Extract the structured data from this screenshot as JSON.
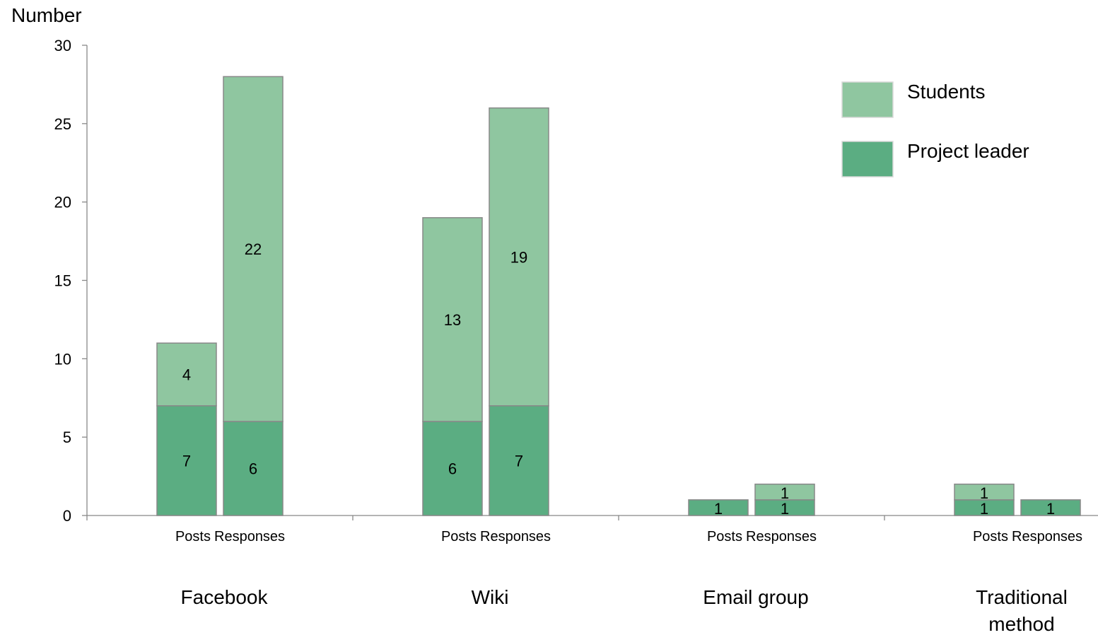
{
  "chart_data": {
    "type": "bar",
    "stacked": true,
    "ylabel": "Number",
    "ylim": [
      0,
      30
    ],
    "yticks": [
      0,
      5,
      10,
      15,
      20,
      25,
      30
    ],
    "groups": [
      "Facebook",
      "Wiki",
      "Email group",
      "Traditional method"
    ],
    "subcategories": [
      "Posts",
      "Responses"
    ],
    "series": [
      {
        "name": "Project leader",
        "color": "#5bad82",
        "values": [
          [
            7,
            6
          ],
          [
            6,
            7
          ],
          [
            1,
            1
          ],
          [
            1,
            1
          ]
        ]
      },
      {
        "name": "Students",
        "color": "#8fc6a0",
        "values": [
          [
            4,
            22
          ],
          [
            13,
            19
          ],
          [
            0,
            1
          ],
          [
            1,
            0
          ]
        ]
      }
    ],
    "legend": {
      "position": "top-right",
      "items": [
        "Students",
        "Project leader"
      ]
    },
    "grid": false
  }
}
